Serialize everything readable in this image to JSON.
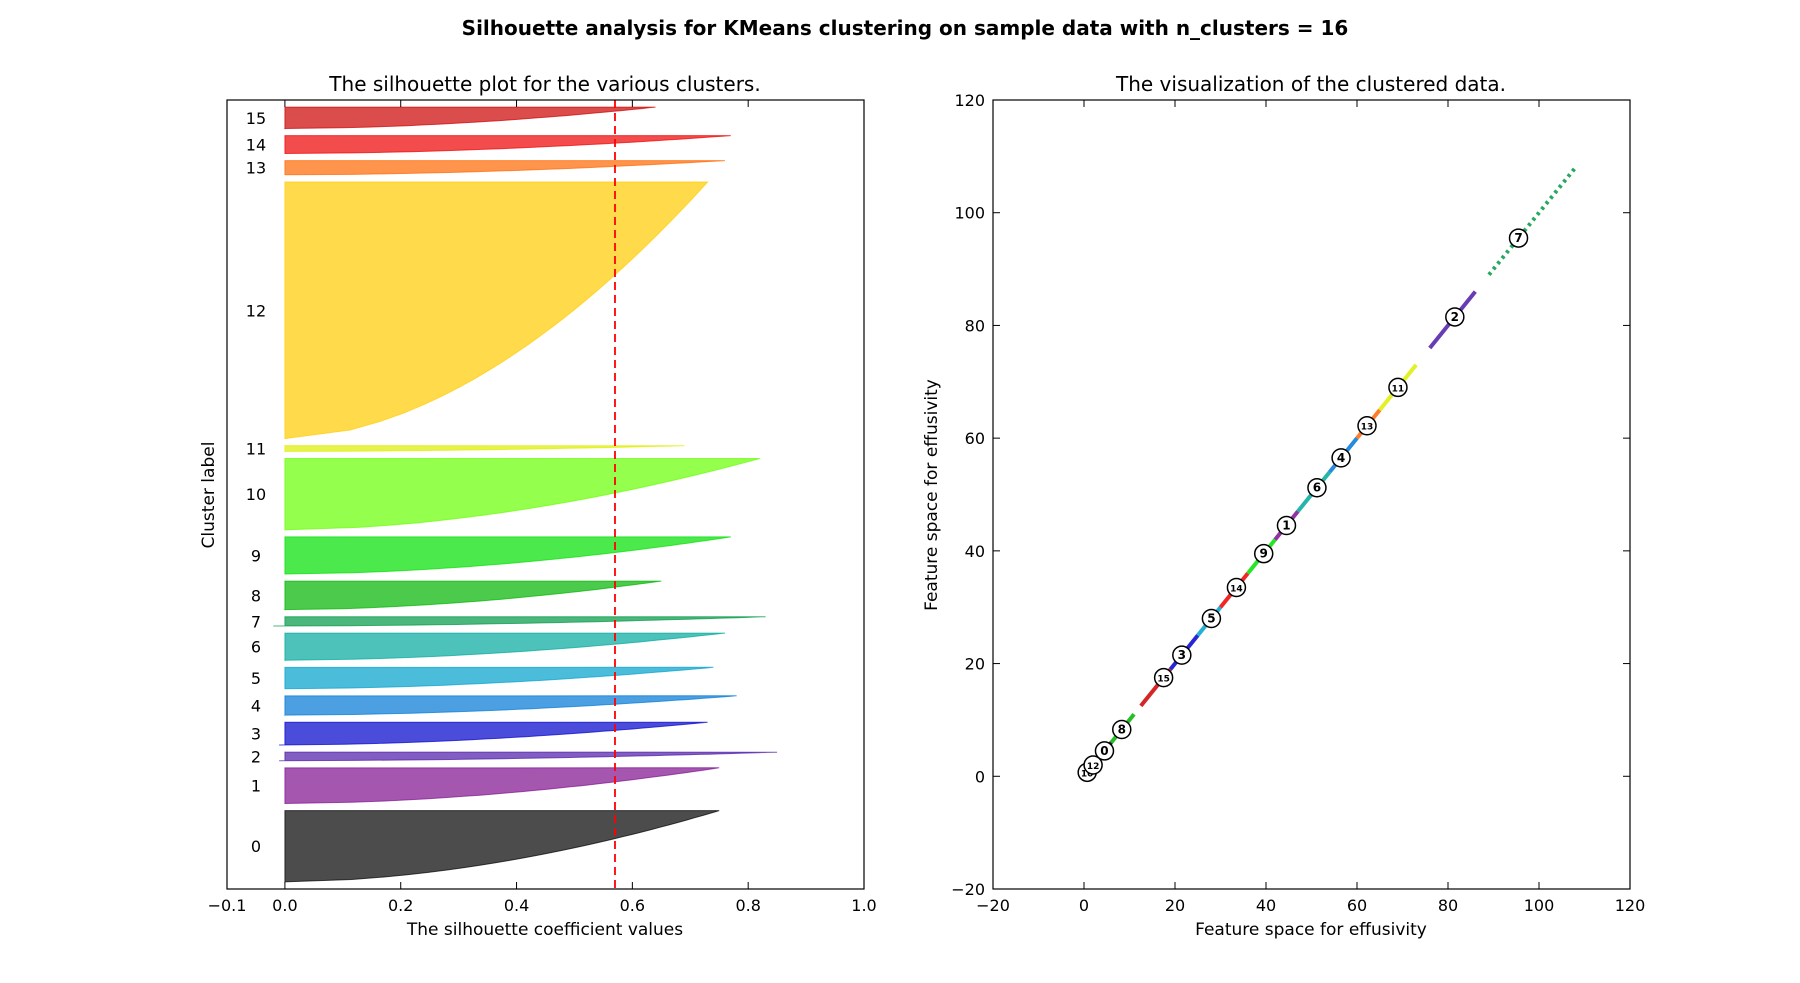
{
  "figure": {
    "suptitle": "Silhouette analysis for KMeans clustering on sample data with n_clusters = 16"
  },
  "chart_data": [
    {
      "type": "area",
      "title": "The silhouette plot for the various clusters.",
      "xlabel": "The silhouette coefficient values",
      "ylabel": "Cluster label",
      "xlim": [
        -0.1,
        1.0
      ],
      "xticks": [
        -0.1,
        0.0,
        0.2,
        0.4,
        0.6,
        0.8,
        1.0
      ],
      "xtick_labels": [
        "−0.1",
        "0.0",
        "0.2",
        "0.4",
        "0.6",
        "0.8",
        "1.0"
      ],
      "average_silhouette_score": 0.57,
      "average_line_color": "#ff0000",
      "clusters": [
        {
          "label": "0",
          "min": 0.0,
          "max": 0.75,
          "size": 100,
          "color": "#000000"
        },
        {
          "label": "1",
          "min": 0.0,
          "max": 0.75,
          "size": 50,
          "color": "#7f0f8f"
        },
        {
          "label": "2",
          "min": -0.01,
          "max": 0.85,
          "size": 12,
          "color": "#4d1aa8"
        },
        {
          "label": "3",
          "min": -0.01,
          "max": 0.73,
          "size": 32,
          "color": "#0000cc"
        },
        {
          "label": "4",
          "min": 0.0,
          "max": 0.78,
          "size": 27,
          "color": "#0077d6"
        },
        {
          "label": "5",
          "min": 0.0,
          "max": 0.74,
          "size": 30,
          "color": "#00a0cc"
        },
        {
          "label": "6",
          "min": 0.0,
          "max": 0.76,
          "size": 38,
          "color": "#00a89c"
        },
        {
          "label": "7",
          "min": -0.02,
          "max": 0.83,
          "size": 13,
          "color": "#009944"
        },
        {
          "label": "8",
          "min": 0.0,
          "max": 0.65,
          "size": 40,
          "color": "#00b300"
        },
        {
          "label": "9",
          "min": 0.0,
          "max": 0.77,
          "size": 52,
          "color": "#00e000"
        },
        {
          "label": "10",
          "min": 0.0,
          "max": 0.82,
          "size": 100,
          "color": "#66ff00"
        },
        {
          "label": "11",
          "min": 0.0,
          "max": 0.69,
          "size": 8,
          "color": "#ddee00"
        },
        {
          "label": "12",
          "min": 0.0,
          "max": 0.73,
          "size": 360,
          "color": "#ffcc00"
        },
        {
          "label": "13",
          "min": 0.0,
          "max": 0.76,
          "size": 20,
          "color": "#ff6600"
        },
        {
          "label": "14",
          "min": 0.0,
          "max": 0.77,
          "size": 25,
          "color": "#ee0000"
        },
        {
          "label": "15",
          "min": 0.0,
          "max": 0.64,
          "size": 30,
          "color": "#cc0000"
        }
      ]
    },
    {
      "type": "scatter",
      "title": "The visualization of the clustered data.",
      "xlabel": "Feature space for effusivity",
      "ylabel": "Feature space for effusivity",
      "xlim": [
        -20,
        120
      ],
      "ylim": [
        -20,
        120
      ],
      "xticks": [
        -20,
        0,
        20,
        40,
        60,
        80,
        100,
        120
      ],
      "yticks": [
        -20,
        0,
        20,
        40,
        60,
        80,
        100,
        120
      ],
      "xtick_labels": [
        "−20",
        "0",
        "20",
        "40",
        "60",
        "80",
        "100",
        "120"
      ],
      "ytick_labels": [
        "−20",
        "0",
        "20",
        "40",
        "60",
        "80",
        "100",
        "120"
      ],
      "segments": [
        {
          "cluster": "10",
          "from": 0,
          "to": 1.5,
          "color": "#66ff00"
        },
        {
          "cluster": "12",
          "from": 1.5,
          "to": 3,
          "color": "#ffcc00"
        },
        {
          "cluster": "0",
          "from": 3,
          "to": 6,
          "color": "#000000"
        },
        {
          "cluster": "8",
          "from": 6,
          "to": 11,
          "color": "#00b300"
        },
        {
          "cluster": "15",
          "from": 12.5,
          "to": 19,
          "color": "#cc0000"
        },
        {
          "cluster": "3",
          "from": 19,
          "to": 25,
          "color": "#0000cc"
        },
        {
          "cluster": "5",
          "from": 25,
          "to": 30,
          "color": "#00a0cc"
        },
        {
          "cluster": "14",
          "from": 30,
          "to": 36,
          "color": "#ee0000"
        },
        {
          "cluster": "9",
          "from": 36,
          "to": 42,
          "color": "#00e000"
        },
        {
          "cluster": "1",
          "from": 42,
          "to": 47,
          "color": "#7f0f8f"
        },
        {
          "cluster": "6",
          "from": 47,
          "to": 54,
          "color": "#00a89c"
        },
        {
          "cluster": "4",
          "from": 54,
          "to": 60,
          "color": "#0077d6"
        },
        {
          "cluster": "13",
          "from": 60,
          "to": 65,
          "color": "#ff6600"
        },
        {
          "cluster": "11",
          "from": 65,
          "to": 73,
          "color": "#ddee00"
        },
        {
          "cluster": "2",
          "from": 76,
          "to": 86,
          "color": "#4d1aa8"
        },
        {
          "cluster": "7",
          "from": 89,
          "to": 108,
          "color": "#009944"
        }
      ],
      "centers": [
        {
          "label": "10",
          "x": 0.7,
          "y": 0.7
        },
        {
          "label": "12",
          "x": 2.0,
          "y": 2.0
        },
        {
          "label": "0",
          "x": 4.5,
          "y": 4.5
        },
        {
          "label": "8",
          "x": 8.3,
          "y": 8.3
        },
        {
          "label": "15",
          "x": 17.5,
          "y": 17.5
        },
        {
          "label": "3",
          "x": 21.5,
          "y": 21.5
        },
        {
          "label": "5",
          "x": 28.0,
          "y": 28.0
        },
        {
          "label": "14",
          "x": 33.5,
          "y": 33.5
        },
        {
          "label": "9",
          "x": 39.5,
          "y": 39.5
        },
        {
          "label": "1",
          "x": 44.5,
          "y": 44.5
        },
        {
          "label": "6",
          "x": 51.2,
          "y": 51.2
        },
        {
          "label": "4",
          "x": 56.5,
          "y": 56.5
        },
        {
          "label": "13",
          "x": 62.2,
          "y": 62.2
        },
        {
          "label": "11",
          "x": 69.0,
          "y": 69.0
        },
        {
          "label": "2",
          "x": 81.5,
          "y": 81.5
        },
        {
          "label": "7",
          "x": 95.5,
          "y": 95.5
        }
      ]
    }
  ]
}
